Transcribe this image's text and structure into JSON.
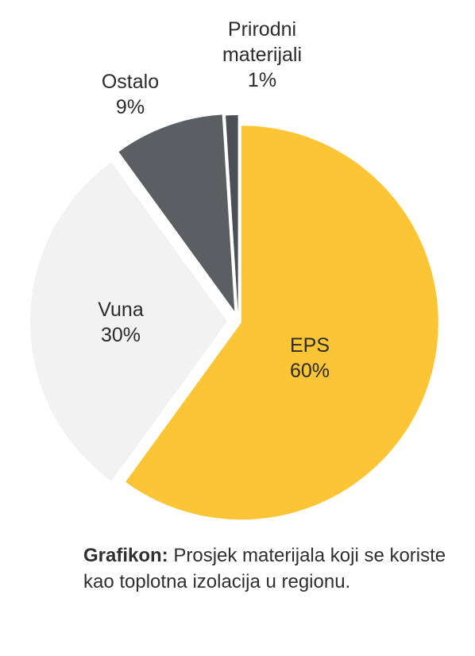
{
  "chart_data": {
    "type": "pie",
    "categories": [
      "EPS",
      "Vuna",
      "Ostalo",
      "Prirodni materijali"
    ],
    "values": [
      60,
      30,
      9,
      1
    ],
    "labels": [
      {
        "lines": [
          "EPS",
          "60%"
        ]
      },
      {
        "lines": [
          "Vuna",
          "30%"
        ]
      },
      {
        "lines": [
          "Ostalo",
          "9%"
        ]
      },
      {
        "lines": [
          "Prirodni",
          "materijali",
          "1%"
        ]
      }
    ],
    "colors": [
      "#fcc535",
      "#f1f2f1",
      "#5b5f61",
      "#4a5055"
    ]
  },
  "caption": {
    "prefix": "Grafikon:",
    "text": " Prosjek materijala koji se koriste kao toplotna izolacija u regionu."
  }
}
